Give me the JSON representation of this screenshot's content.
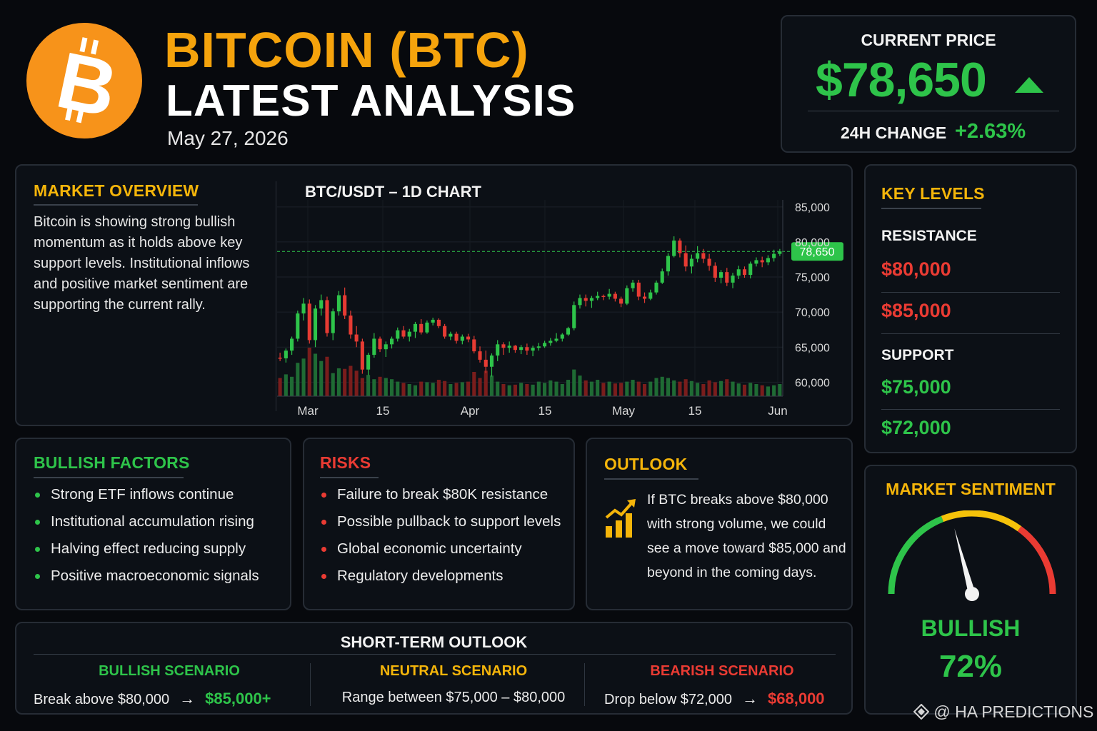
{
  "header": {
    "title_line1": "BITCOIN (BTC)",
    "title_line2": "LATEST ANALYSIS",
    "date": "May 27, 2026",
    "logo_icon": "bitcoin-logo-icon"
  },
  "price": {
    "label": "CURRENT PRICE",
    "value": "$78,650",
    "change_label": "24H CHANGE",
    "change_value": "+2.63%"
  },
  "overview": {
    "title": "MARKET OVERVIEW",
    "text": "Bitcoin is showing strong bullish momentum as it holds above key support levels. Institutional inflows and positive market sentiment are supporting the current rally."
  },
  "chart_data": {
    "type": "candlestick",
    "title": "BTC/USDT – 1D CHART",
    "x_tick_labels": [
      "Mar",
      "15",
      "Apr",
      "15",
      "May",
      "15",
      "Jun"
    ],
    "y_tick_labels": [
      "85,000",
      "80,000",
      "75,000",
      "70,000",
      "65,000",
      "60,000"
    ],
    "y_ticks": [
      85000,
      80000,
      75000,
      70000,
      65000,
      60000
    ],
    "ylim": [
      58000,
      86000
    ],
    "current_price_label": "78,650",
    "current_price": 78650,
    "grid": true,
    "colors": {
      "up": "#2ec44a",
      "down": "#e63b33",
      "vol_up": "#1f6b34",
      "vol_down": "#7a1d1c",
      "line": "#2ec44a"
    },
    "candles": [
      [
        63500,
        64200,
        63000,
        63400,
        30
      ],
      [
        63400,
        64800,
        62800,
        64500,
        36
      ],
      [
        64500,
        66500,
        63900,
        66200,
        32
      ],
      [
        66200,
        70200,
        65800,
        69800,
        55
      ],
      [
        69800,
        72000,
        68800,
        71200,
        62
      ],
      [
        71200,
        71800,
        65500,
        66000,
        80
      ],
      [
        66000,
        71000,
        65000,
        70500,
        70
      ],
      [
        70500,
        72500,
        69500,
        71700,
        58
      ],
      [
        71700,
        72200,
        66500,
        67000,
        65
      ],
      [
        67000,
        70500,
        66000,
        70100,
        38
      ],
      [
        70100,
        73000,
        69500,
        72400,
        46
      ],
      [
        72400,
        73500,
        69000,
        69500,
        45
      ],
      [
        69500,
        70200,
        66200,
        66800,
        50
      ],
      [
        66800,
        68000,
        65000,
        65800,
        42
      ],
      [
        65800,
        66200,
        61200,
        61800,
        30
      ],
      [
        61800,
        64200,
        61000,
        63900,
        35
      ],
      [
        63900,
        67000,
        63500,
        66200,
        28
      ],
      [
        66200,
        66500,
        64300,
        64700,
        32
      ],
      [
        64700,
        65800,
        63600,
        65400,
        30
      ],
      [
        65400,
        66500,
        64800,
        66200,
        28
      ],
      [
        66200,
        67800,
        65800,
        67400,
        24
      ],
      [
        67400,
        68000,
        66200,
        66500,
        22
      ],
      [
        66500,
        67600,
        65800,
        67200,
        20
      ],
      [
        67200,
        68600,
        66300,
        68300,
        18
      ],
      [
        68300,
        69000,
        66800,
        67100,
        24
      ],
      [
        67100,
        68800,
        66900,
        68500,
        23
      ],
      [
        68500,
        69200,
        68100,
        68900,
        22
      ],
      [
        68900,
        69100,
        67700,
        68000,
        27
      ],
      [
        68000,
        68300,
        66200,
        66500,
        25
      ],
      [
        66500,
        67200,
        66000,
        66900,
        20
      ],
      [
        66900,
        67200,
        65500,
        65900,
        22
      ],
      [
        65900,
        66800,
        65400,
        66500,
        23
      ],
      [
        66500,
        66900,
        65700,
        66100,
        24
      ],
      [
        66100,
        66600,
        64100,
        64400,
        40
      ],
      [
        64400,
        65100,
        62800,
        63200,
        30
      ],
      [
        63200,
        64500,
        61300,
        62200,
        42
      ],
      [
        62200,
        64100,
        60800,
        63800,
        34
      ],
      [
        63800,
        66000,
        63000,
        65400,
        24
      ],
      [
        65400,
        65700,
        63900,
        64900,
        20
      ],
      [
        64900,
        65800,
        64200,
        65200,
        18
      ],
      [
        65200,
        65300,
        64200,
        64600,
        19
      ],
      [
        64600,
        65300,
        64000,
        65000,
        22
      ],
      [
        65000,
        65500,
        63900,
        64500,
        20
      ],
      [
        64500,
        65200,
        63700,
        64900,
        19
      ],
      [
        64900,
        65600,
        64500,
        65100,
        24
      ],
      [
        65100,
        65900,
        64900,
        65600,
        22
      ],
      [
        65600,
        66300,
        65200,
        65900,
        26
      ],
      [
        65900,
        67000,
        65700,
        66200,
        24
      ],
      [
        66200,
        67000,
        65800,
        66800,
        20
      ],
      [
        66800,
        67900,
        66600,
        67700,
        27
      ],
      [
        67700,
        71500,
        67400,
        71000,
        44
      ],
      [
        71000,
        72500,
        70500,
        72000,
        34
      ],
      [
        72000,
        72500,
        70800,
        71600,
        26
      ],
      [
        71600,
        72300,
        70600,
        72000,
        24
      ],
      [
        72000,
        72900,
        71700,
        72300,
        27
      ],
      [
        72300,
        72500,
        71700,
        72200,
        22
      ],
      [
        72200,
        73300,
        71800,
        72600,
        24
      ],
      [
        72600,
        72900,
        71500,
        71900,
        21
      ],
      [
        71900,
        72200,
        70700,
        71200,
        22
      ],
      [
        71200,
        73800,
        71000,
        73400,
        24
      ],
      [
        73400,
        74600,
        72900,
        74200,
        27
      ],
      [
        74200,
        74600,
        71700,
        72200,
        24
      ],
      [
        72200,
        72800,
        71300,
        71900,
        20
      ],
      [
        71900,
        73200,
        71700,
        72800,
        24
      ],
      [
        72800,
        74500,
        72500,
        74200,
        30
      ],
      [
        74200,
        76200,
        74000,
        75800,
        32
      ],
      [
        75800,
        78400,
        75200,
        78000,
        30
      ],
      [
        78000,
        80800,
        77800,
        80200,
        26
      ],
      [
        80200,
        80500,
        77800,
        78400,
        24
      ],
      [
        78400,
        79500,
        75800,
        76500,
        28
      ],
      [
        76500,
        78200,
        75500,
        77600,
        25
      ],
      [
        77600,
        79400,
        77100,
        78400,
        22
      ],
      [
        78400,
        79000,
        77000,
        77600,
        20
      ],
      [
        77600,
        78300,
        75900,
        76600,
        26
      ],
      [
        76600,
        77100,
        74300,
        74900,
        23
      ],
      [
        74900,
        76000,
        74100,
        75700,
        25
      ],
      [
        75700,
        76300,
        73700,
        74200,
        28
      ],
      [
        74200,
        75600,
        73400,
        75200,
        24
      ],
      [
        75200,
        76600,
        74700,
        76100,
        21
      ],
      [
        76100,
        76500,
        74900,
        75300,
        19
      ],
      [
        75300,
        77200,
        74800,
        76900,
        22
      ],
      [
        76900,
        77800,
        76500,
        77400,
        20
      ],
      [
        77400,
        77900,
        76400,
        77100,
        18
      ],
      [
        77100,
        78100,
        76700,
        77700,
        16
      ],
      [
        77700,
        78900,
        77200,
        78300,
        18
      ],
      [
        78300,
        79000,
        78000,
        78650,
        20
      ]
    ]
  },
  "key_levels": {
    "title": "KEY LEVELS",
    "resistance_label": "RESISTANCE",
    "resistance": [
      "$80,000",
      "$85,000"
    ],
    "support_label": "SUPPORT",
    "support": [
      "$75,000",
      "$72,000"
    ]
  },
  "bullish": {
    "title": "BULLISH FACTORS",
    "items": [
      "Strong ETF inflows continue",
      "Institutional accumulation rising",
      "Halving effect reducing supply",
      "Positive macroeconomic signals"
    ]
  },
  "risks": {
    "title": "RISKS",
    "items": [
      "Failure to break $80K resistance",
      "Possible pullback to support levels",
      "Global economic uncertainty",
      "Regulatory developments"
    ]
  },
  "outlook": {
    "title": "OUTLOOK",
    "text": "If BTC breaks above $80,000 with strong volume, we could see a move toward $85,000 and beyond in the coming days.",
    "icon": "chart-up-arrow-icon"
  },
  "sentiment": {
    "title": "MARKET SENTIMENT",
    "label": "BULLISH",
    "value": "72%",
    "level": 0.72
  },
  "short_term": {
    "title": "SHORT-TERM OUTLOOK",
    "bullish": {
      "title": "BULLISH SCENARIO",
      "condition": "Break above $80,000",
      "arrow": "→",
      "target": "$85,000+"
    },
    "neutral": {
      "title": "NEUTRAL SCENARIO",
      "condition": "Range between $75,000 – $80,000"
    },
    "bearish": {
      "title": "BEARISH SCENARIO",
      "condition": "Drop below $72,000",
      "arrow": "→",
      "target": "$68,000"
    }
  },
  "watermark": "@ HA PREDICTIONS"
}
